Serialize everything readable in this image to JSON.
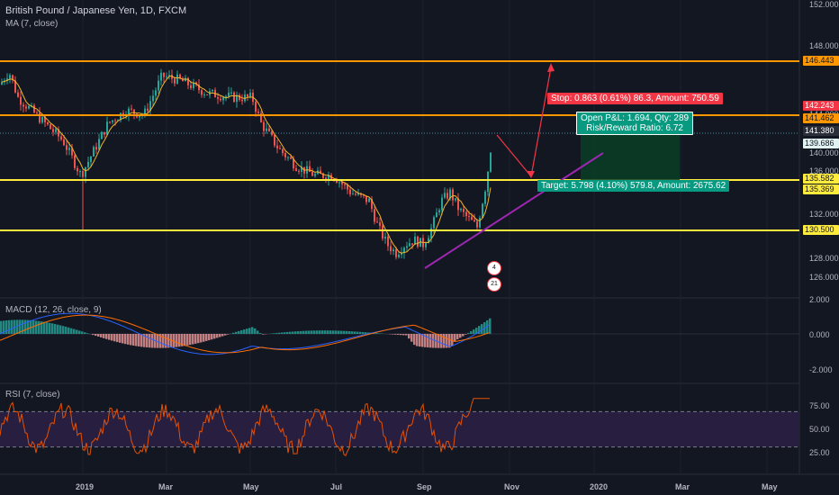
{
  "header": {
    "symbol_title": "British Pound / Japanese Yen, 1D, FXCM",
    "ma_label": "MA (7, close)",
    "macd_label": "MACD (12, 26, close, 9)",
    "rsi_label": "RSI (7, close)"
  },
  "price_axis": {
    "ticks": [
      "152.000",
      "148.000",
      "144.000",
      "140.000",
      "136.000",
      "132.000",
      "128.000",
      "126.000"
    ]
  },
  "price_tags": {
    "t1": "146.443",
    "t2": "142.243",
    "t3": "141.462",
    "t4": "141.380",
    "t5": "139.686",
    "t6": "135.582",
    "t7": "135.369",
    "t8": "130.500"
  },
  "macd_axis": {
    "ticks": [
      "2.000",
      "0.000",
      "-2.000"
    ]
  },
  "rsi_axis": {
    "ticks": [
      "75.00",
      "50.00",
      "25.00"
    ]
  },
  "time_axis": {
    "labels": [
      "2019",
      "Mar",
      "May",
      "Jul",
      "Sep",
      "Nov",
      "2020",
      "Mar",
      "May"
    ]
  },
  "trade_boxes": {
    "stop": "Stop: 0.863 (0.61%) 86.3, Amount: 750.59",
    "open_pl": "Open P&L: 1.694, Qty: 289",
    "risk_reward": "Risk/Reward Ratio: 6.72",
    "target": "Target: 5.798 (4.10%) 579.8, Amount: 2675.62"
  },
  "badges": {
    "b1": "4",
    "b2": "21"
  },
  "colors": {
    "background": "#131722",
    "orange_level": "#ff9800",
    "yellow_level": "#ffeb3b",
    "trendline": "#9c27b0",
    "stop_box": "#f23645",
    "target_box": "#089981",
    "up_candle": "#26a69a",
    "down_candle": "#ef5350",
    "ma_line": "#f0b429"
  }
}
